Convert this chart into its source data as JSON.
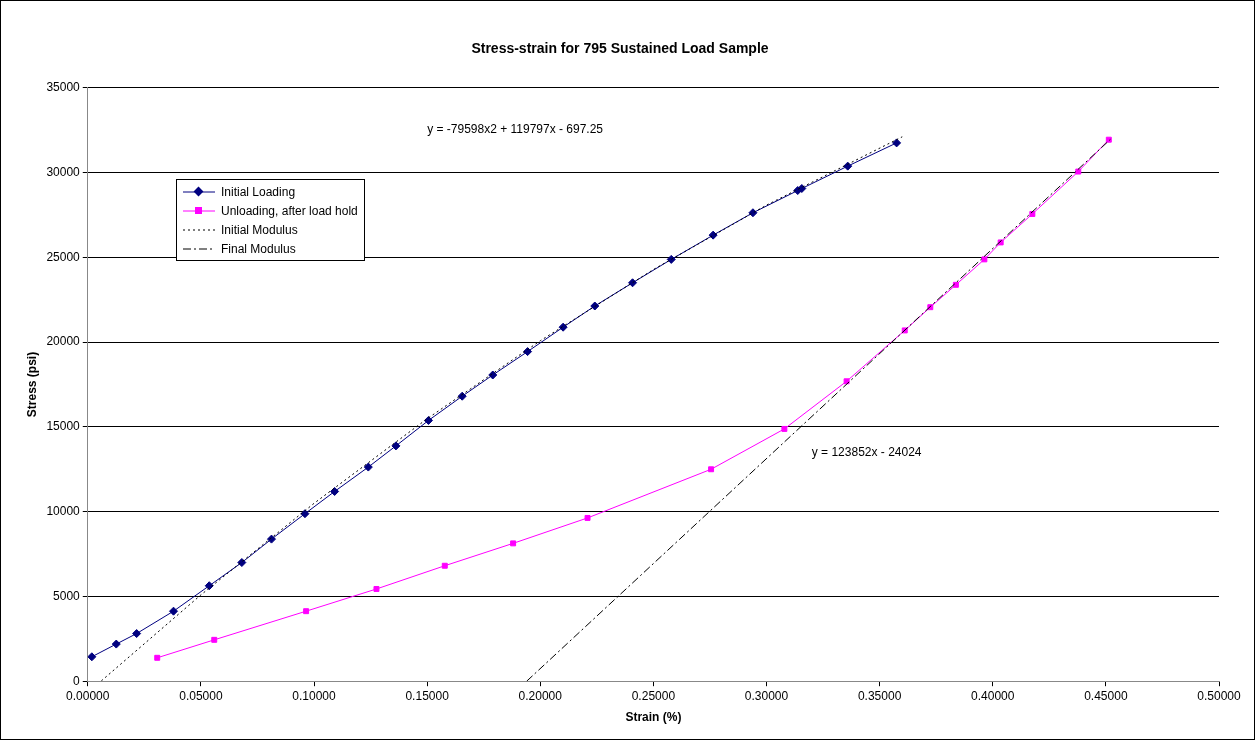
{
  "chart_data": {
    "type": "line",
    "title": "Stress-strain for 795 Sustained Load Sample",
    "xlabel": "Strain (%)",
    "ylabel": "Stress (psi)",
    "xlim": [
      0,
      0.5
    ],
    "xticks": [
      {
        "value": 0,
        "label": "0.00000"
      },
      {
        "value": 0.05,
        "label": "0.05000"
      },
      {
        "value": 0.1,
        "label": "0.10000"
      },
      {
        "value": 0.15,
        "label": "0.15000"
      },
      {
        "value": 0.2,
        "label": "0.20000"
      },
      {
        "value": 0.25,
        "label": "0.25000"
      },
      {
        "value": 0.3,
        "label": "0.30000"
      },
      {
        "value": 0.35,
        "label": "0.35000"
      },
      {
        "value": 0.4,
        "label": "0.40000"
      },
      {
        "value": 0.45,
        "label": "0.45000"
      },
      {
        "value": 0.5,
        "label": "0.50000"
      }
    ],
    "ylim": [
      0,
      35000
    ],
    "yticks": [
      0,
      5000,
      10000,
      15000,
      20000,
      25000,
      30000,
      35000
    ],
    "grid": "y",
    "legend": "top left",
    "series": [
      {
        "name": "Initial Loading",
        "color": "#000080",
        "marker": "diamond",
        "line_style": "solid",
        "x": [
          0.0018,
          0.0126,
          0.0216,
          0.0379,
          0.0537,
          0.0681,
          0.0812,
          0.096,
          0.1091,
          0.124,
          0.1362,
          0.1506,
          0.1655,
          0.179,
          0.1944,
          0.2101,
          0.2241,
          0.2408,
          0.2579,
          0.2764,
          0.294,
          0.3138,
          0.3156,
          0.3359,
          0.3575
        ],
        "values": [
          1440,
          2190,
          2810,
          4130,
          5630,
          7000,
          8380,
          9880,
          11190,
          12630,
          13880,
          15380,
          16810,
          18060,
          19440,
          20880,
          22130,
          23500,
          24880,
          26310,
          27630,
          28940,
          29060,
          30380,
          31750
        ]
      },
      {
        "name": "Unloading, after load hold",
        "color": "#ff00ff",
        "marker": "square",
        "line_style": "solid",
        "x": [
          0.0307,
          0.0559,
          0.0965,
          0.1276,
          0.1578,
          0.188,
          0.2209,
          0.2755,
          0.3079,
          0.3354,
          0.3611,
          0.3724,
          0.3837,
          0.3963,
          0.4035,
          0.4175,
          0.4378,
          0.4513
        ],
        "values": [
          1380,
          2440,
          4130,
          5440,
          6810,
          8130,
          9630,
          12500,
          14880,
          17690,
          20690,
          22060,
          23380,
          24880,
          25880,
          27560,
          30060,
          31940
        ]
      },
      {
        "name": "Initial Modulus",
        "color": "#000000",
        "marker": "none",
        "line_style": "dotted",
        "x": [
          0.006,
          0.05,
          0.1,
          0.15,
          0.2,
          0.25,
          0.3,
          0.36
        ],
        "values": [
          20,
          5090,
          10490,
          15480,
          20080,
          24280,
          28080,
          32110
        ]
      },
      {
        "name": "Final Modulus",
        "color": "#000000",
        "marker": "none",
        "line_style": "dashdot",
        "x": [
          0.194,
          0.452
        ],
        "values": [
          0,
          31960
        ]
      }
    ],
    "annotations": [
      "y = -79598x2 + 119797x - 697.25",
      "y = 123852x - 24024"
    ]
  }
}
